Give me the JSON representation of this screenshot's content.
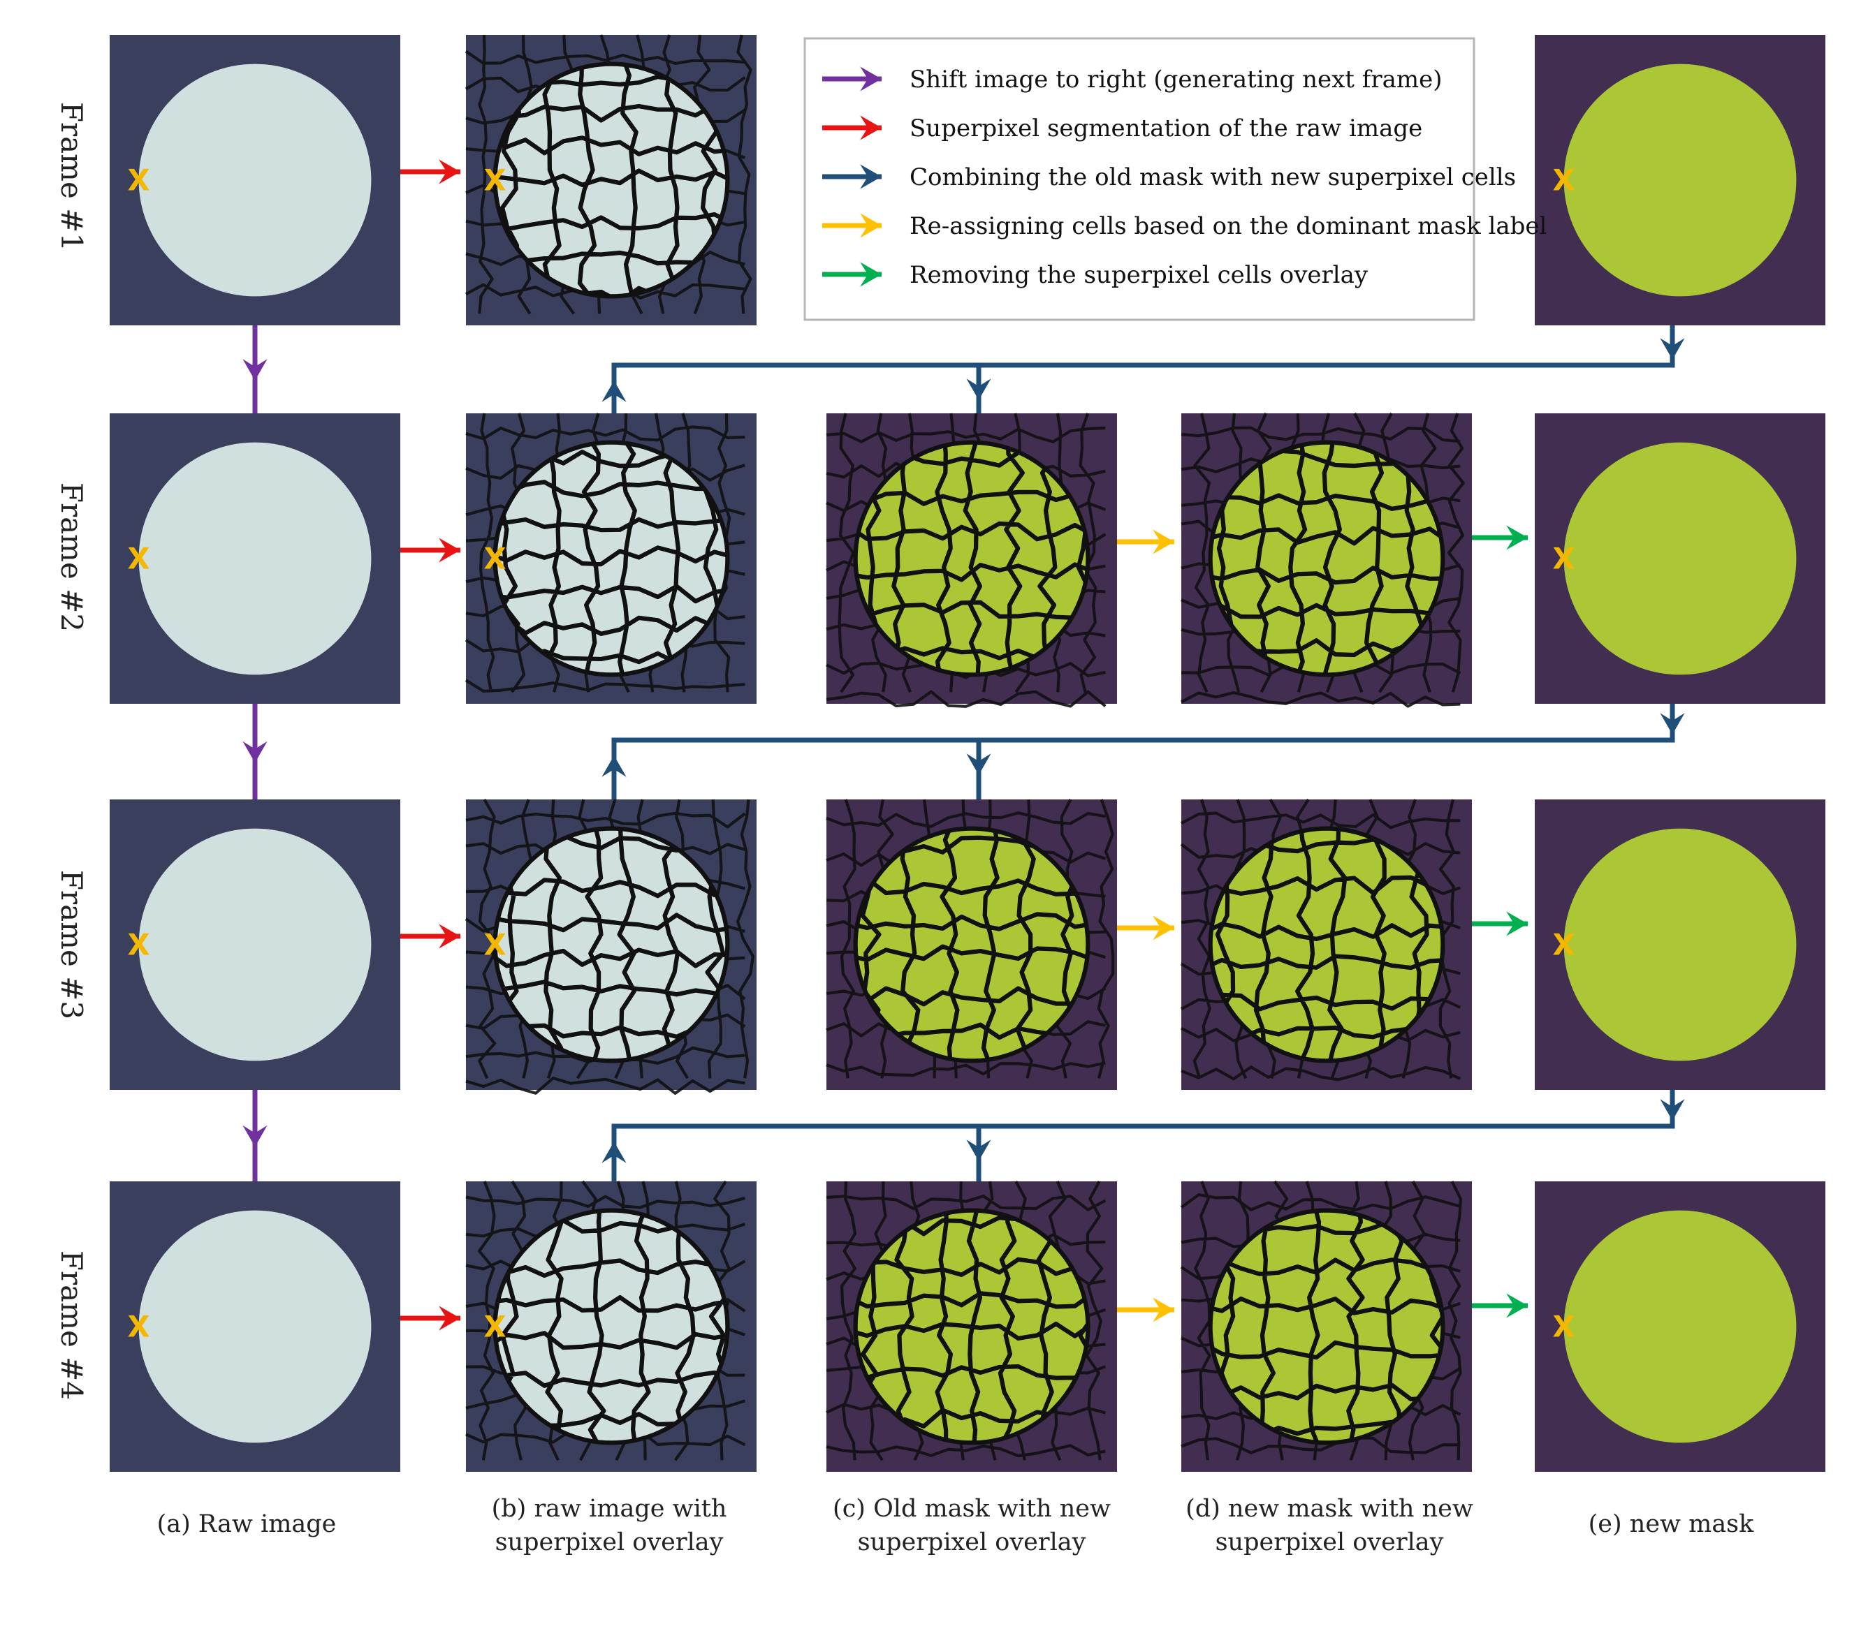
{
  "colors": {
    "raw_bg": "#3b3f5e",
    "raw_disc": "#cfe0df",
    "mask_bg": "#422e51",
    "mask_disc": "#abc736",
    "cell_line": "#111111",
    "purple": "#7030a0",
    "red": "#e81414",
    "navy": "#1f4e79",
    "yellow": "#ffc000",
    "green": "#00b050",
    "marker": "#f5b800"
  },
  "marker_text": "X",
  "frames": [
    {
      "label": "Frame #1",
      "has_mask_panels": false
    },
    {
      "label": "Frame #2",
      "has_mask_panels": true
    },
    {
      "label": "Frame #3",
      "has_mask_panels": true
    },
    {
      "label": "Frame #4",
      "has_mask_panels": true
    }
  ],
  "legend": [
    {
      "color": "purple",
      "text": "Shift image to right (generating next frame)"
    },
    {
      "color": "red",
      "text": "Superpixel segmentation of the raw image"
    },
    {
      "color": "navy",
      "text": "Combining the old mask with new superpixel cells"
    },
    {
      "color": "yellow",
      "text": "Re-assigning cells based on the dominant mask label"
    },
    {
      "color": "green",
      "text": "Removing the superpixel cells overlay"
    }
  ],
  "captions": [
    {
      "lines": [
        "(a) Raw image"
      ]
    },
    {
      "lines": [
        "(b) raw image with",
        "superpixel overlay"
      ]
    },
    {
      "lines": [
        "(c) Old mask with new",
        "superpixel overlay"
      ]
    },
    {
      "lines": [
        "(d) new mask with new",
        "superpixel overlay"
      ]
    },
    {
      "lines": [
        "(e) new mask"
      ]
    }
  ]
}
